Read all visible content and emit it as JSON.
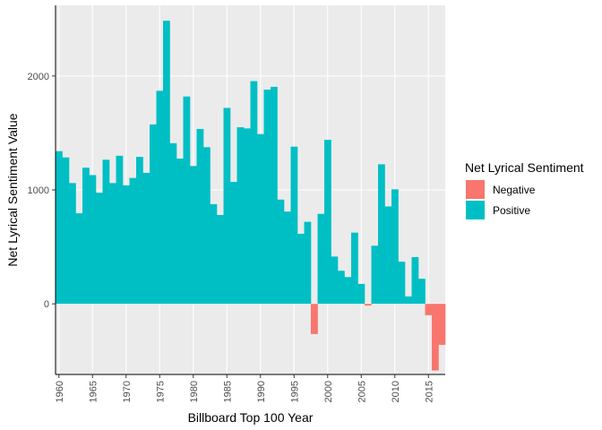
{
  "chart_data": {
    "type": "bar",
    "xlabel": "Billboard Top 100 Year",
    "ylabel": "Net Lyrical Sentiment Value",
    "xlim": [
      1959.5,
      2017.5
    ],
    "ylim": [
      -620,
      2620
    ],
    "y_ticks": [
      0,
      1000,
      2000
    ],
    "x_ticks": [
      1960,
      1965,
      1970,
      1975,
      1980,
      1985,
      1990,
      1995,
      2000,
      2005,
      2010,
      2015
    ],
    "x_tick_rotation": -90,
    "grid": true,
    "panel_background": "#ebebeb",
    "gridline_color": "#ffffff",
    "legend": {
      "title": "Net Lyrical Sentiment",
      "placement": "right",
      "entries": [
        {
          "label": "Negative",
          "color": "#f8766d"
        },
        {
          "label": "Positive",
          "color": "#00bfc4"
        }
      ]
    },
    "colors": {
      "Negative": "#f8766d",
      "Positive": "#00bfc4"
    },
    "years": [
      1960,
      1961,
      1962,
      1963,
      1964,
      1965,
      1966,
      1967,
      1968,
      1969,
      1970,
      1971,
      1972,
      1973,
      1974,
      1975,
      1976,
      1977,
      1978,
      1979,
      1980,
      1981,
      1982,
      1983,
      1984,
      1985,
      1986,
      1987,
      1988,
      1989,
      1990,
      1991,
      1992,
      1993,
      1994,
      1995,
      1996,
      1997,
      1998,
      1999,
      2000,
      2001,
      2002,
      2003,
      2004,
      2005,
      2006,
      2007,
      2008,
      2009,
      2010,
      2011,
      2012,
      2013,
      2014,
      2015,
      2016,
      2017
    ],
    "values": [
      1340,
      1285,
      1060,
      795,
      1195,
      1130,
      975,
      1265,
      1060,
      1300,
      1040,
      1105,
      1290,
      1150,
      1575,
      1870,
      2485,
      1410,
      1275,
      1820,
      1210,
      1535,
      1375,
      875,
      780,
      1720,
      1070,
      1550,
      1540,
      1955,
      1490,
      1880,
      1905,
      915,
      810,
      1380,
      615,
      720,
      -265,
      790,
      1440,
      415,
      290,
      235,
      625,
      175,
      -15,
      510,
      1225,
      855,
      1005,
      370,
      65,
      410,
      220,
      -100,
      -585,
      -360
    ]
  }
}
